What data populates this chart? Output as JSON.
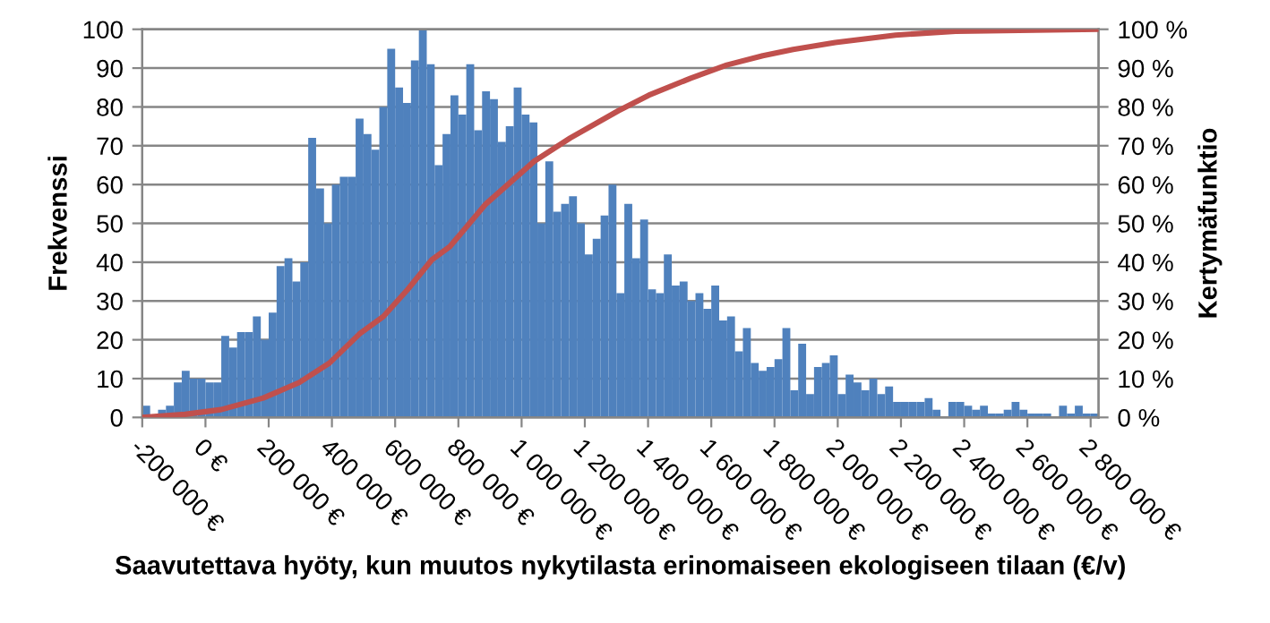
{
  "chart_data": {
    "type": "histogram",
    "xlabel": "Saavutettava hyöty, kun muutos nykytilasta erinomaiseen ekologiseen tilaan (€/v)",
    "ylabel": "Frekvenssi",
    "y2label": "Kertymäfunktio",
    "bins": [
      -200000,
      -175000,
      -150000,
      -125000,
      -100000,
      -75000,
      -50000,
      -25000,
      0,
      25000,
      50000,
      75000,
      100000,
      125000,
      150000,
      175000,
      200000,
      225000,
      250000,
      275000,
      300000,
      325000,
      350000,
      375000,
      400000,
      425000,
      450000,
      475000,
      500000,
      525000,
      550000,
      575000,
      600000,
      625000,
      650000,
      675000,
      700000,
      725000,
      750000,
      775000,
      800000,
      825000,
      850000,
      875000,
      900000,
      925000,
      950000,
      975000,
      1000000,
      1025000,
      1050000,
      1075000,
      1100000,
      1125000,
      1150000,
      1175000,
      1200000,
      1225000,
      1250000,
      1275000,
      1300000,
      1325000,
      1350000,
      1375000,
      1400000,
      1425000,
      1450000,
      1475000,
      1500000,
      1525000,
      1550000,
      1575000,
      1600000,
      1625000,
      1650000,
      1675000,
      1700000,
      1725000,
      1750000,
      1775000,
      1800000,
      1825000,
      1850000,
      1875000,
      1900000,
      1925000,
      1950000,
      1975000,
      2000000,
      2025000,
      2050000,
      2075000,
      2100000,
      2125000,
      2150000,
      2175000,
      2200000,
      2225000,
      2250000,
      2275000,
      2300000,
      2325000,
      2350000,
      2375000,
      2400000,
      2425000,
      2450000,
      2475000,
      2500000,
      2525000,
      2550000,
      2575000,
      2600000,
      2625000,
      2650000,
      2675000,
      2700000,
      2725000,
      2750000,
      2775000,
      2800000,
      2825000
    ],
    "series": [
      {
        "color": "#4f81bd",
        "values": [
          3,
          0,
          2,
          3,
          9,
          12,
          10,
          10,
          9,
          9,
          21,
          18,
          22,
          22,
          26,
          20,
          27,
          39,
          41,
          35,
          40,
          72,
          59,
          50,
          60,
          62,
          62,
          77,
          73,
          69,
          80,
          95,
          85,
          81,
          92,
          100,
          91,
          65,
          73,
          83,
          78,
          91,
          74,
          84,
          82,
          71,
          75,
          85,
          78,
          76,
          50,
          66,
          53,
          55,
          57,
          50,
          42,
          46,
          52,
          60,
          32,
          55,
          41,
          51,
          33,
          32,
          42,
          34,
          35,
          30,
          32,
          28,
          34,
          25,
          26,
          17,
          23,
          14,
          12,
          13,
          15,
          23,
          7,
          19,
          6,
          13,
          14,
          16,
          6,
          11,
          9,
          7,
          10,
          6,
          8,
          4,
          4,
          4,
          4,
          5,
          2,
          0,
          4,
          4,
          3,
          2,
          3,
          1,
          1,
          2,
          4,
          2,
          1,
          1,
          1,
          0,
          3,
          1,
          3,
          1,
          1
        ]
      },
      {
        "type": "line",
        "axis": "y2",
        "color": "#c0504d",
        "x": [
          -200000,
          -65000,
          49000,
          183000,
          297000,
          392000,
          487000,
          563000,
          640000,
          716000,
          773000,
          887000,
          1040000,
          1154000,
          1306000,
          1402000,
          1535000,
          1649000,
          1763000,
          1859000,
          1992000,
          2183000,
          2373000,
          2825000
        ],
        "values": [
          0,
          0.8,
          2,
          5,
          9,
          14,
          21.5,
          26,
          33,
          40.6,
          44,
          55,
          66,
          72,
          79,
          83,
          87.4,
          90.8,
          93.2,
          94.8,
          96.6,
          98.5,
          99.5,
          100
        ]
      }
    ],
    "xlim": [
      -200000,
      2825000
    ],
    "xticks": [
      {
        "value": -200000,
        "label": "-200 000 €"
      },
      {
        "value": 0,
        "label": "0 €"
      },
      {
        "value": 200000,
        "label": "200 000 €"
      },
      {
        "value": 400000,
        "label": "400 000 €"
      },
      {
        "value": 600000,
        "label": "600 000 €"
      },
      {
        "value": 800000,
        "label": "800 000 €"
      },
      {
        "value": 1000000,
        "label": "1 000 000 €"
      },
      {
        "value": 1200000,
        "label": "1 200 000 €"
      },
      {
        "value": 1400000,
        "label": "1 400 000 €"
      },
      {
        "value": 1600000,
        "label": "1 600 000 €"
      },
      {
        "value": 1800000,
        "label": "1 800 000 €"
      },
      {
        "value": 2000000,
        "label": "2 000 000 €"
      },
      {
        "value": 2200000,
        "label": "2 200 000 €"
      },
      {
        "value": 2400000,
        "label": "2 400 000 €"
      },
      {
        "value": 2600000,
        "label": "2 600 000 €"
      },
      {
        "value": 2800000,
        "label": "2 800 000 €"
      }
    ],
    "ylim": [
      0,
      100
    ],
    "yticks": [
      0,
      10,
      20,
      30,
      40,
      50,
      60,
      70,
      80,
      90,
      100
    ],
    "y2lim": [
      0,
      100
    ],
    "y2ticks": [
      {
        "value": 0,
        "label": "0 %"
      },
      {
        "value": 10,
        "label": "10 %"
      },
      {
        "value": 20,
        "label": "20 %"
      },
      {
        "value": 30,
        "label": "30 %"
      },
      {
        "value": 40,
        "label": "40 %"
      },
      {
        "value": 50,
        "label": "50 %"
      },
      {
        "value": 60,
        "label": "60 %"
      },
      {
        "value": 70,
        "label": "70 %"
      },
      {
        "value": 80,
        "label": "80 %"
      },
      {
        "value": 90,
        "label": "90 %"
      },
      {
        "value": 100,
        "label": "100 %"
      }
    ],
    "grid": "y",
    "legend": false,
    "marker": "none",
    "line_style": "solid"
  }
}
